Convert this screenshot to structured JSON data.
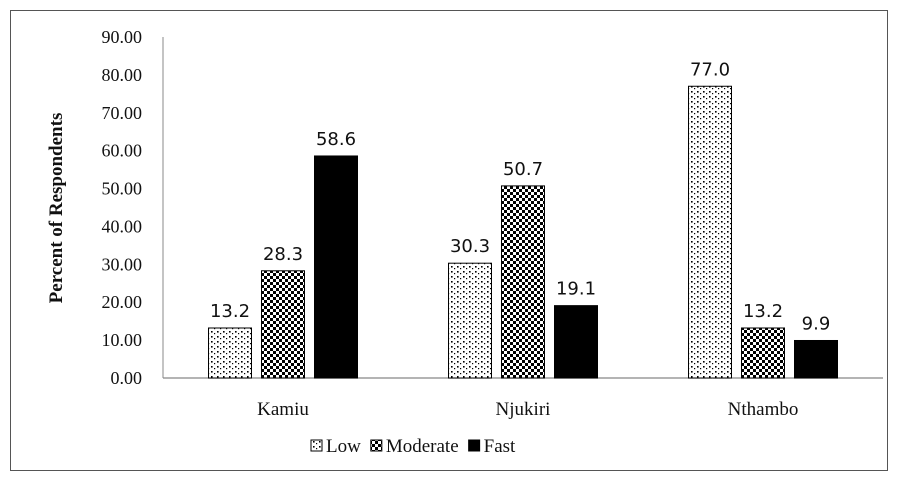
{
  "chart_data": {
    "type": "bar",
    "categories": [
      "Kamiu",
      "Njukiri",
      "Nthambo"
    ],
    "series": [
      {
        "name": "Low",
        "values": [
          13.2,
          30.3,
          77.0
        ],
        "pattern": "dots",
        "color": "#000000"
      },
      {
        "name": "Moderate",
        "values": [
          28.3,
          50.7,
          13.2
        ],
        "pattern": "checker",
        "color": "#000000"
      },
      {
        "name": "Fast",
        "values": [
          58.6,
          19.1,
          9.9
        ],
        "pattern": "solid",
        "color": "#000000"
      }
    ],
    "data_labels": [
      [
        "13.2",
        "30.3",
        "77.0"
      ],
      [
        "28.3",
        "50.7",
        "13.2"
      ],
      [
        "58.6",
        "19.1",
        "9.9"
      ]
    ],
    "ylabel": "Percent of Respondents",
    "xlabel": "",
    "ylim": [
      0,
      90
    ],
    "yticks": [
      "0.00",
      "10.00",
      "20.00",
      "30.00",
      "40.00",
      "50.00",
      "60.00",
      "70.00",
      "80.00",
      "90.00"
    ],
    "grid": false,
    "legend_position": "bottom"
  }
}
